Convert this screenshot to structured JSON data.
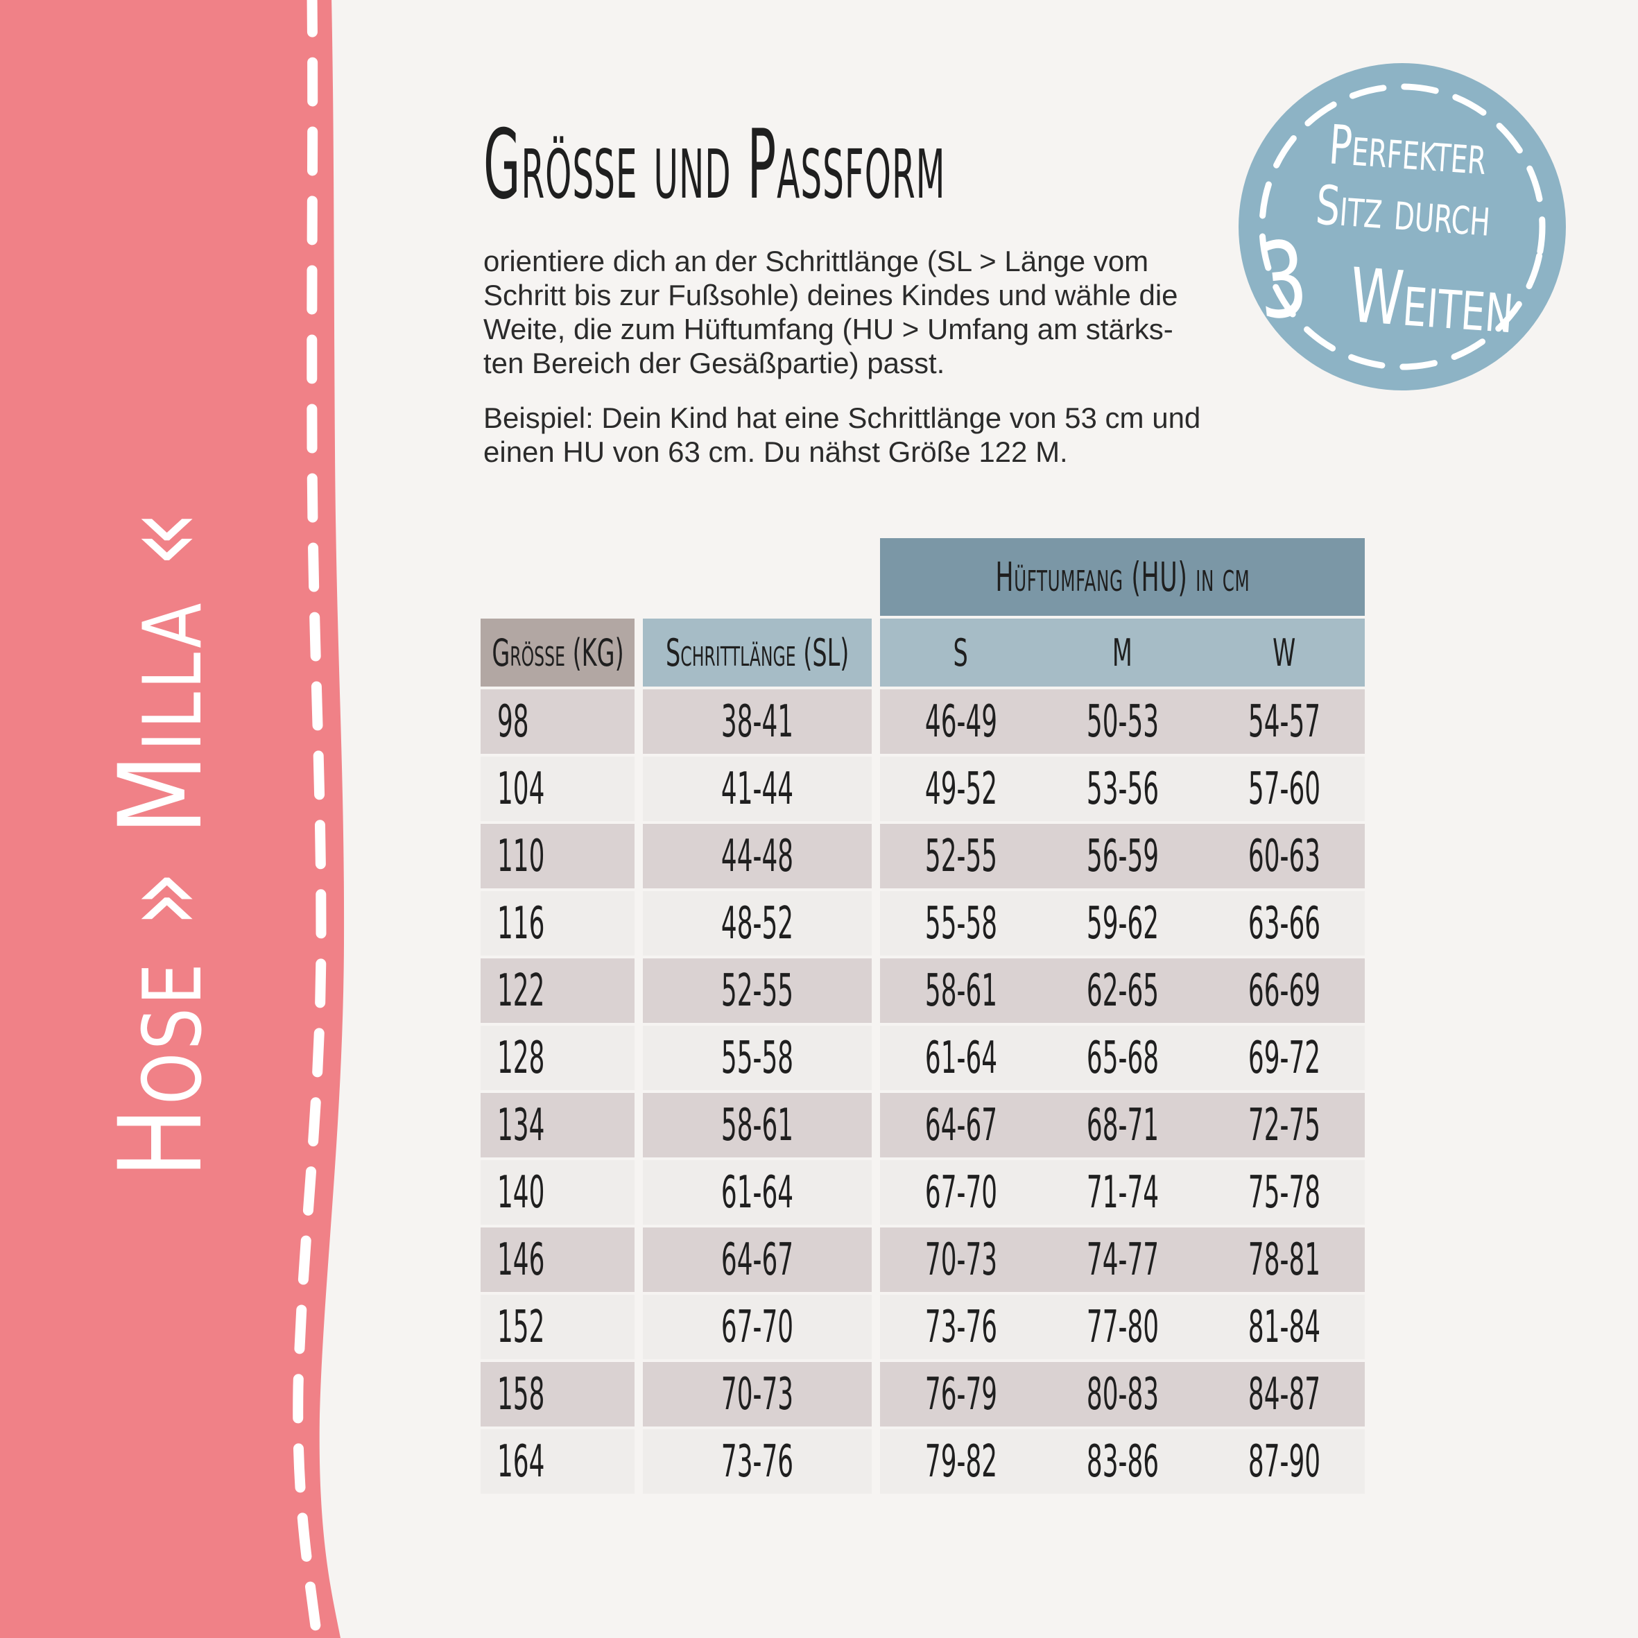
{
  "page": {
    "background": "#F6F4F2",
    "text_color": "#2B2B2B"
  },
  "sidebar": {
    "label": "Hose » Milla «",
    "color": "#F08187",
    "stitch_color": "#FFFFFF"
  },
  "badge": {
    "color": "#8DB3C5",
    "line1": "Perfekter",
    "line2": "Sitz durch",
    "line3_number": "3",
    "line3_word": "Weiten"
  },
  "content": {
    "title": "Größe und Passform",
    "intro_lines": [
      "orientiere dich an der Schrittlänge (SL > Länge vom",
      "Schritt bis zur Fußsohle) deines Kindes und wähle die",
      "Weite, die zum Hüftumfang (HU > Umfang am stärks-",
      "ten Bereich der Gesäßpartie) passt."
    ],
    "example_lines": [
      "Beispiel: Dein Kind hat eine Schrittlänge von 53 cm und",
      "einen HU von 63 cm. Du nähst Größe 122 M."
    ]
  },
  "table": {
    "group_header": "Hüftumfang (HU) in cm",
    "columns": [
      "Größe (KG)",
      "Schrittlänge (SL)",
      "S",
      "M",
      "W"
    ],
    "rows": [
      {
        "size": "98",
        "sl": "38-41",
        "s": "46-49",
        "m": "50-53",
        "w": "54-57"
      },
      {
        "size": "104",
        "sl": "41-44",
        "s": "49-52",
        "m": "53-56",
        "w": "57-60"
      },
      {
        "size": "110",
        "sl": "44-48",
        "s": "52-55",
        "m": "56-59",
        "w": "60-63"
      },
      {
        "size": "116",
        "sl": "48-52",
        "s": "55-58",
        "m": "59-62",
        "w": "63-66"
      },
      {
        "size": "122",
        "sl": "52-55",
        "s": "58-61",
        "m": "62-65",
        "w": "66-69"
      },
      {
        "size": "128",
        "sl": "55-58",
        "s": "61-64",
        "m": "65-68",
        "w": "69-72"
      },
      {
        "size": "134",
        "sl": "58-61",
        "s": "64-67",
        "m": "68-71",
        "w": "72-75"
      },
      {
        "size": "140",
        "sl": "61-64",
        "s": "67-70",
        "m": "71-74",
        "w": "75-78"
      },
      {
        "size": "146",
        "sl": "64-67",
        "s": "70-73",
        "m": "74-77",
        "w": "78-81"
      },
      {
        "size": "152",
        "sl": "67-70",
        "s": "73-76",
        "m": "77-80",
        "w": "81-84"
      },
      {
        "size": "158",
        "sl": "70-73",
        "s": "76-79",
        "m": "80-83",
        "w": "84-87"
      },
      {
        "size": "164",
        "sl": "73-76",
        "s": "79-82",
        "m": "83-86",
        "w": "87-90"
      }
    ],
    "colors": {
      "group_header_bg": "#7B97A6",
      "subheader_bg": "#A6BCC6",
      "size_header_bg": "#B2A7A3",
      "row_dark": "#DAD2D2",
      "row_light": "#EFEDEB"
    }
  }
}
